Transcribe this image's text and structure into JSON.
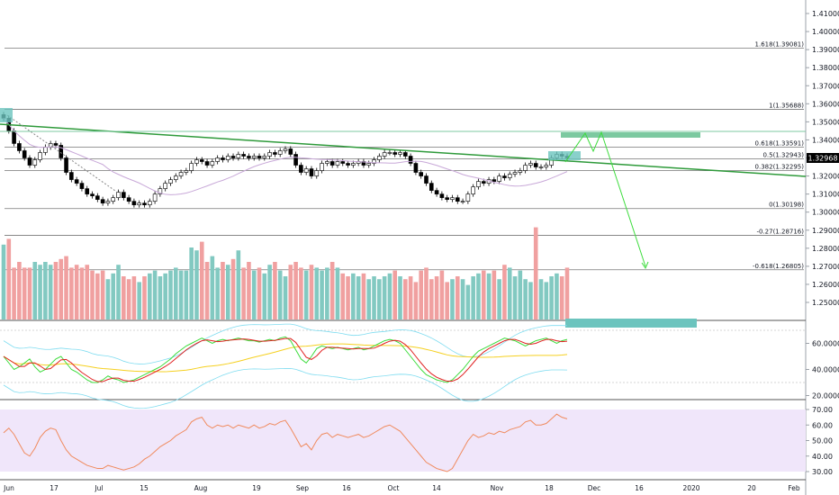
{
  "colors": {
    "up": "#ffffff",
    "down": "#000000",
    "vol_up": "#82c9c1",
    "vol_down": "#f0a0a0",
    "trend": "#2e9a3a",
    "fib_line": "#777777",
    "price_tag": "#000000",
    "zone": "#7cc9a0",
    "teal_box": "#6cc4be",
    "stoch_k": "#3ddc3d",
    "stoch_d": "#e02020",
    "rsi": "#f08a5d",
    "rsi_bg": "#f0e6fa",
    "bb": "#7fdcf0",
    "ma": "#f5d020",
    "ema": "#c8a8d8"
  },
  "axes": {
    "price_ticks": [
      "1.41000",
      "1.40000",
      "1.39000",
      "1.38000",
      "1.37000",
      "1.36000",
      "1.35000",
      "1.34000",
      "1.33000",
      "1.32000",
      "1.31000",
      "1.30000",
      "1.29000",
      "1.28000",
      "1.27000",
      "1.26000",
      "1.25000"
    ],
    "stoch_ticks": [
      "60.00000",
      "40.00000",
      "20.00000"
    ],
    "rsi_ticks": [
      "70.00",
      "60.00",
      "50.00",
      "40.00",
      "30.00"
    ],
    "x_ticks": [
      "Jun",
      "17",
      "Jul",
      "15",
      "Aug",
      "19",
      "Sep",
      "16",
      "Oct",
      "14",
      "Nov",
      "18",
      "Dec",
      "16",
      "2020",
      "20",
      "Feb"
    ]
  },
  "last_price": "1.32968",
  "fib_levels": [
    {
      "label": "1.618(1.39081)",
      "price": 1.39081
    },
    {
      "label": "1(1.35688)",
      "price": 1.35688
    },
    {
      "label": "0.618(1.33591)",
      "price": 1.33591
    },
    {
      "label": "0.5(1.32943)",
      "price": 1.32943
    },
    {
      "label": "0.382(1.32295)",
      "price": 1.32295
    },
    {
      "label": "0(1.30198)",
      "price": 1.30198
    },
    {
      "label": "-0.27(1.28716)",
      "price": 1.28716
    },
    {
      "label": "-0.618(1.26805)",
      "price": 1.26805
    }
  ],
  "chart_data": {
    "type": "candlestick",
    "title": "",
    "symbol": "",
    "x_tick_labels": [
      "Jun",
      "17",
      "Jul",
      "15",
      "Aug",
      "19",
      "Sep",
      "16",
      "Oct",
      "14",
      "Nov",
      "18",
      "Dec",
      "16",
      "2020",
      "20",
      "Feb"
    ],
    "close_series": [
      1.352,
      1.345,
      1.338,
      1.334,
      1.33,
      1.326,
      1.329,
      1.333,
      1.336,
      1.338,
      1.337,
      1.33,
      1.322,
      1.318,
      1.316,
      1.313,
      1.31,
      1.309,
      1.307,
      1.305,
      1.306,
      1.308,
      1.311,
      1.308,
      1.306,
      1.304,
      1.305,
      1.304,
      1.306,
      1.31,
      1.313,
      1.316,
      1.318,
      1.32,
      1.322,
      1.323,
      1.327,
      1.329,
      1.328,
      1.326,
      1.328,
      1.33,
      1.329,
      1.331,
      1.33,
      1.332,
      1.331,
      1.33,
      1.331,
      1.33,
      1.331,
      1.333,
      1.332,
      1.334,
      1.335,
      1.332,
      1.326,
      1.322,
      1.324,
      1.32,
      1.323,
      1.327,
      1.328,
      1.326,
      1.328,
      1.327,
      1.326,
      1.327,
      1.328,
      1.326,
      1.327,
      1.329,
      1.331,
      1.333,
      1.333,
      1.332,
      1.333,
      1.331,
      1.327,
      1.322,
      1.32,
      1.316,
      1.312,
      1.31,
      1.308,
      1.307,
      1.308,
      1.306,
      1.306,
      1.31,
      1.314,
      1.317,
      1.316,
      1.318,
      1.317,
      1.32,
      1.319,
      1.321,
      1.322,
      1.323,
      1.326,
      1.327,
      1.325,
      1.325,
      1.326,
      1.33,
      1.332,
      1.331,
      1.33
    ],
    "volume": [
      1.3,
      1.4,
      0.9,
      1.0,
      0.9,
      0.9,
      1.0,
      0.95,
      1.0,
      0.95,
      1.0,
      1.05,
      1.1,
      0.9,
      0.95,
      0.9,
      0.95,
      0.85,
      0.8,
      0.85,
      0.7,
      0.8,
      0.95,
      0.75,
      0.7,
      0.75,
      0.65,
      0.75,
      0.8,
      0.85,
      0.75,
      0.8,
      0.85,
      0.9,
      0.85,
      0.85,
      1.25,
      1.2,
      1.35,
      1.0,
      1.1,
      0.9,
      1.0,
      0.95,
      1.05,
      1.2,
      0.9,
      1.0,
      0.85,
      0.9,
      0.8,
      0.95,
      1.0,
      0.85,
      0.75,
      0.95,
      1.0,
      0.9,
      0.85,
      0.95,
      0.9,
      0.85,
      0.9,
      1.0,
      0.9,
      0.8,
      0.75,
      0.8,
      0.75,
      0.8,
      0.7,
      0.75,
      0.7,
      0.75,
      0.8,
      0.85,
      0.75,
      0.7,
      0.75,
      0.65,
      0.85,
      0.9,
      0.7,
      0.75,
      0.85,
      0.65,
      0.7,
      0.75,
      0.7,
      0.6,
      0.75,
      0.8,
      0.85,
      0.8,
      0.85,
      0.7,
      0.95,
      0.9,
      0.75,
      0.85,
      0.7,
      0.65,
      1.6,
      0.7,
      0.65,
      0.75,
      0.8,
      0.75,
      0.9
    ],
    "stoch_k": [
      50,
      45,
      40,
      42,
      45,
      48,
      42,
      38,
      40,
      44,
      48,
      50,
      45,
      40,
      38,
      35,
      32,
      30,
      30,
      32,
      35,
      33,
      32,
      30,
      31,
      32,
      34,
      36,
      38,
      40,
      42,
      45,
      48,
      52,
      55,
      58,
      60,
      62,
      64,
      62,
      60,
      62,
      63,
      62,
      63,
      64,
      63,
      62,
      62,
      61,
      62,
      63,
      62,
      64,
      65,
      62,
      55,
      48,
      45,
      50,
      56,
      58,
      57,
      56,
      57,
      56,
      55,
      56,
      57,
      55,
      56,
      58,
      60,
      62,
      63,
      62,
      60,
      55,
      50,
      45,
      40,
      36,
      34,
      32,
      31,
      30,
      32,
      36,
      40,
      45,
      50,
      54,
      56,
      58,
      60,
      62,
      64,
      63,
      62,
      60,
      58,
      60,
      62,
      63,
      64,
      62,
      60,
      62,
      63
    ],
    "rsi": [
      55,
      58,
      54,
      48,
      42,
      40,
      45,
      52,
      56,
      58,
      57,
      50,
      44,
      40,
      38,
      36,
      34,
      33,
      32,
      32,
      34,
      33,
      32,
      31,
      32,
      33,
      35,
      38,
      40,
      43,
      46,
      48,
      50,
      53,
      55,
      57,
      62,
      64,
      65,
      60,
      58,
      60,
      59,
      60,
      58,
      60,
      59,
      58,
      60,
      58,
      59,
      61,
      60,
      62,
      63,
      58,
      52,
      46,
      48,
      44,
      50,
      54,
      55,
      52,
      54,
      53,
      52,
      53,
      54,
      52,
      53,
      55,
      57,
      59,
      60,
      58,
      56,
      52,
      48,
      44,
      40,
      36,
      34,
      32,
      31,
      30,
      32,
      38,
      44,
      50,
      54,
      52,
      53,
      55,
      54,
      56,
      55,
      57,
      58,
      59,
      62,
      63,
      60,
      60,
      61,
      64,
      67,
      65,
      64
    ]
  }
}
